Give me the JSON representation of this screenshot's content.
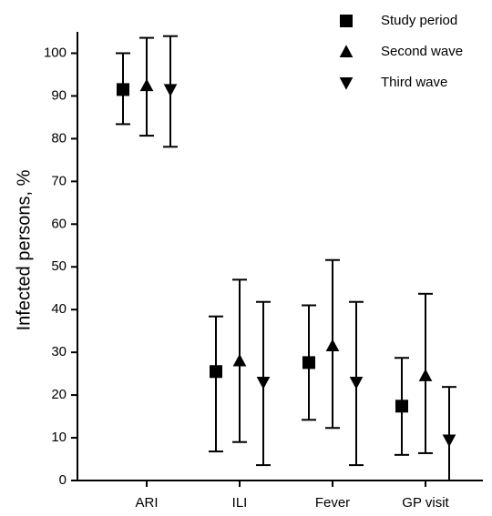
{
  "chart_data": {
    "type": "errorbar",
    "y_label": "Infected persons, %",
    "categories": [
      "ARI",
      "ILI",
      "Fever",
      "GP visit"
    ],
    "ylim": [
      0,
      105
    ],
    "yticks": [
      0,
      10,
      20,
      30,
      40,
      50,
      60,
      70,
      80,
      90,
      100
    ],
    "legend": "upper right",
    "series": [
      {
        "name": "Study period",
        "marker": "square",
        "color": "#000000",
        "values": [
          91.5,
          25.5,
          27.6,
          17.4
        ],
        "lower": [
          83.4,
          6.8,
          14.2,
          6
        ],
        "upper": [
          100,
          38.4,
          41,
          28.7
        ]
      },
      {
        "name": "Second wave",
        "marker": "triangle-up",
        "color": "#000000",
        "values": [
          92.4,
          28,
          31.5,
          24.5
        ],
        "lower": [
          80.7,
          9,
          12.3,
          6.4
        ],
        "upper": [
          103.6,
          47,
          51.6,
          43.7
        ]
      },
      {
        "name": "Third wave",
        "marker": "triangle-down",
        "color": "#000000",
        "values": [
          91.5,
          23,
          23,
          9.5
        ],
        "lower": [
          78.1,
          3.6,
          3.6,
          0
        ],
        "upper": [
          104,
          41.8,
          41.8,
          21.9
        ]
      }
    ]
  }
}
